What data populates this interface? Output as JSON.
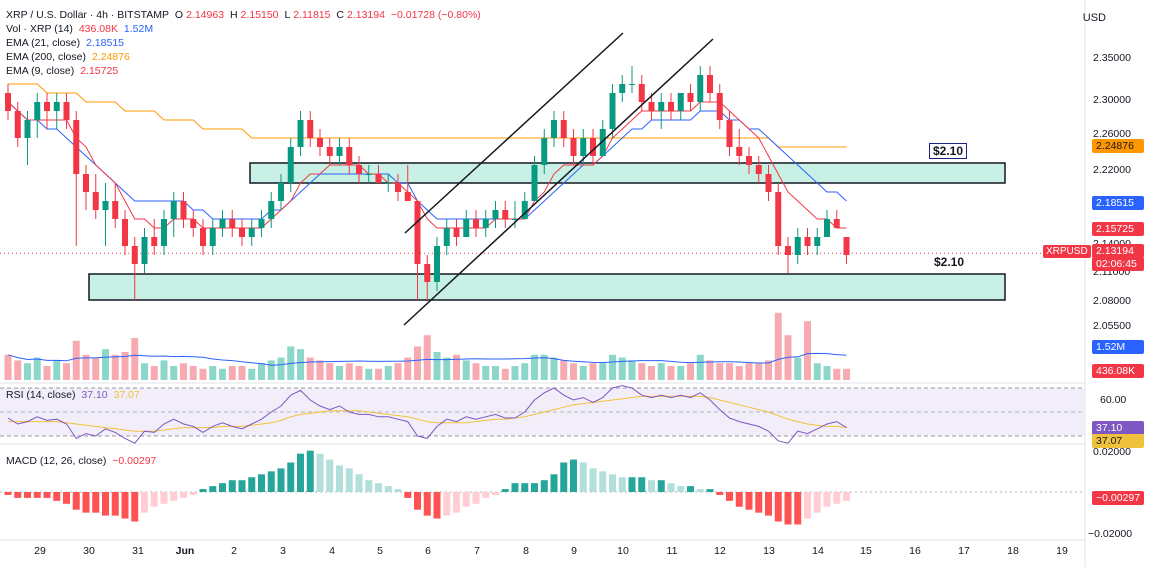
{
  "header": {
    "symbol_line": "XRP / U.S. Dollar · 4h · BITSTAMP",
    "ohlc": {
      "o_label": "O",
      "o": "2.14963",
      "h_label": "H",
      "h": "2.15150",
      "l_label": "L",
      "l": "2.11815",
      "c_label": "C",
      "c": "2.13194",
      "change": "−0.01728 (−0.80%)"
    },
    "indicators": [
      {
        "label": "Vol · XRP (14)",
        "values": [
          "436.08K",
          "1.52M"
        ],
        "colors": [
          "#f23645",
          "#2962ff"
        ]
      },
      {
        "label": "EMA (21, close)",
        "values": [
          "2.18515"
        ],
        "colors": [
          "#2962ff"
        ]
      },
      {
        "label": "EMA (200, close)",
        "values": [
          "2.24876"
        ],
        "colors": [
          "#ff9800"
        ]
      },
      {
        "label": "EMA (9, close)",
        "values": [
          "2.15725"
        ],
        "colors": [
          "#f23645"
        ]
      }
    ],
    "currency": "USD"
  },
  "price_axis": [
    "2.35000",
    "2.30000",
    "2.26000",
    "2.22000",
    "2.14000",
    "2.11000",
    "2.08000",
    "2.05500"
  ],
  "price_tags": {
    "ema200": "2.24876",
    "ema21": "2.18515",
    "ema9": "2.15725",
    "last": "2.13194",
    "countdown": "02:06:45",
    "symbol": "XRPUSD",
    "vol_ma": "1.52M",
    "vol": "436.08K"
  },
  "annotations": {
    "upper_level": "$2.10",
    "lower_level": "$2.10"
  },
  "rsi": {
    "label": "RSI (14, close)",
    "value": "37.10",
    "ma": "37.07",
    "axis": [
      "60.00"
    ]
  },
  "macd": {
    "label": "MACD (12, 26, close)",
    "value": "−0.00297",
    "axis": [
      "0.02000",
      "−0.02000"
    ]
  },
  "x_axis": [
    "29",
    "30",
    "31",
    "Jun",
    "2",
    "3",
    "4",
    "5",
    "6",
    "7",
    "8",
    "9",
    "10",
    "11",
    "12",
    "13",
    "14",
    "15",
    "16",
    "17",
    "18",
    "19"
  ],
  "colors": {
    "up": "#089981",
    "down": "#f23645",
    "ema21": "#2962ff",
    "ema200": "#ff9800",
    "ema9": "#f23645",
    "zone": "#c8f0e4",
    "rsi": "#7e57c2",
    "rsi_ma": "#f0c23b"
  },
  "chart_data": {
    "type": "candlestick",
    "timeframe": "4h",
    "ohlc": [
      [
        2.31,
        2.32,
        2.28,
        2.29
      ],
      [
        2.29,
        2.3,
        2.25,
        2.26
      ],
      [
        2.26,
        2.29,
        2.23,
        2.28
      ],
      [
        2.28,
        2.31,
        2.26,
        2.3
      ],
      [
        2.3,
        2.31,
        2.27,
        2.29
      ],
      [
        2.29,
        2.31,
        2.27,
        2.3
      ],
      [
        2.3,
        2.31,
        2.27,
        2.28
      ],
      [
        2.28,
        2.29,
        2.14,
        2.22
      ],
      [
        2.22,
        2.23,
        2.18,
        2.2
      ],
      [
        2.2,
        2.22,
        2.17,
        2.18
      ],
      [
        2.18,
        2.21,
        2.14,
        2.19
      ],
      [
        2.19,
        2.21,
        2.16,
        2.17
      ],
      [
        2.17,
        2.18,
        2.13,
        2.14
      ],
      [
        2.14,
        2.15,
        2.08,
        2.12
      ],
      [
        2.12,
        2.16,
        2.11,
        2.15
      ],
      [
        2.15,
        2.17,
        2.13,
        2.14
      ],
      [
        2.14,
        2.18,
        2.13,
        2.17
      ],
      [
        2.17,
        2.2,
        2.15,
        2.19
      ],
      [
        2.19,
        2.2,
        2.16,
        2.17
      ],
      [
        2.17,
        2.18,
        2.15,
        2.16
      ],
      [
        2.16,
        2.17,
        2.13,
        2.14
      ],
      [
        2.14,
        2.17,
        2.13,
        2.16
      ],
      [
        2.16,
        2.18,
        2.15,
        2.17
      ],
      [
        2.17,
        2.18,
        2.15,
        2.16
      ],
      [
        2.16,
        2.17,
        2.14,
        2.15
      ],
      [
        2.15,
        2.17,
        2.14,
        2.16
      ],
      [
        2.16,
        2.18,
        2.15,
        2.17
      ],
      [
        2.17,
        2.2,
        2.16,
        2.19
      ],
      [
        2.19,
        2.22,
        2.18,
        2.21
      ],
      [
        2.21,
        2.26,
        2.2,
        2.25
      ],
      [
        2.25,
        2.29,
        2.24,
        2.28
      ],
      [
        2.28,
        2.29,
        2.25,
        2.26
      ],
      [
        2.26,
        2.27,
        2.24,
        2.25
      ],
      [
        2.25,
        2.26,
        2.23,
        2.24
      ],
      [
        2.24,
        2.26,
        2.23,
        2.25
      ],
      [
        2.25,
        2.26,
        2.22,
        2.23
      ],
      [
        2.23,
        2.24,
        2.21,
        2.22
      ],
      [
        2.22,
        2.23,
        2.21,
        2.22
      ],
      [
        2.22,
        2.23,
        2.21,
        2.21
      ],
      [
        2.21,
        2.22,
        2.2,
        2.21
      ],
      [
        2.21,
        2.22,
        2.19,
        2.2
      ],
      [
        2.2,
        2.23,
        2.19,
        2.19
      ],
      [
        2.19,
        2.19,
        2.08,
        2.12
      ],
      [
        2.12,
        2.13,
        2.08,
        2.1
      ],
      [
        2.1,
        2.15,
        2.09,
        2.14
      ],
      [
        2.14,
        2.17,
        2.13,
        2.16
      ],
      [
        2.16,
        2.17,
        2.14,
        2.15
      ],
      [
        2.15,
        2.18,
        2.15,
        2.17
      ],
      [
        2.17,
        2.18,
        2.15,
        2.16
      ],
      [
        2.16,
        2.18,
        2.15,
        2.17
      ],
      [
        2.17,
        2.19,
        2.16,
        2.18
      ],
      [
        2.18,
        2.19,
        2.16,
        2.17
      ],
      [
        2.17,
        2.19,
        2.16,
        2.17
      ],
      [
        2.17,
        2.2,
        2.17,
        2.19
      ],
      [
        2.19,
        2.24,
        2.19,
        2.23
      ],
      [
        2.23,
        2.27,
        2.22,
        2.26
      ],
      [
        2.26,
        2.29,
        2.25,
        2.28
      ],
      [
        2.28,
        2.29,
        2.25,
        2.26
      ],
      [
        2.26,
        2.27,
        2.23,
        2.24
      ],
      [
        2.24,
        2.27,
        2.23,
        2.26
      ],
      [
        2.26,
        2.27,
        2.23,
        2.24
      ],
      [
        2.24,
        2.28,
        2.24,
        2.27
      ],
      [
        2.27,
        2.32,
        2.26,
        2.31
      ],
      [
        2.31,
        2.33,
        2.3,
        2.32
      ],
      [
        2.32,
        2.34,
        2.31,
        2.32
      ],
      [
        2.32,
        2.33,
        2.29,
        2.3
      ],
      [
        2.3,
        2.31,
        2.28,
        2.29
      ],
      [
        2.29,
        2.31,
        2.27,
        2.3
      ],
      [
        2.3,
        2.31,
        2.28,
        2.29
      ],
      [
        2.29,
        2.31,
        2.28,
        2.31
      ],
      [
        2.31,
        2.32,
        2.29,
        2.3
      ],
      [
        2.3,
        2.34,
        2.29,
        2.33
      ],
      [
        2.33,
        2.34,
        2.3,
        2.31
      ],
      [
        2.31,
        2.32,
        2.27,
        2.28
      ],
      [
        2.28,
        2.29,
        2.24,
        2.25
      ],
      [
        2.25,
        2.27,
        2.23,
        2.24
      ],
      [
        2.24,
        2.25,
        2.22,
        2.23
      ],
      [
        2.23,
        2.24,
        2.21,
        2.22
      ],
      [
        2.22,
        2.23,
        2.19,
        2.2
      ],
      [
        2.2,
        2.21,
        2.13,
        2.14
      ],
      [
        2.14,
        2.15,
        2.11,
        2.13
      ],
      [
        2.13,
        2.16,
        2.12,
        2.15
      ],
      [
        2.15,
        2.16,
        2.13,
        2.14
      ],
      [
        2.14,
        2.16,
        2.13,
        2.15
      ],
      [
        2.15,
        2.18,
        2.15,
        2.17
      ],
      [
        2.17,
        2.18,
        2.16,
        2.16
      ],
      [
        2.15,
        2.15,
        2.12,
        2.13
      ]
    ],
    "ema21": [
      2.3,
      2.29,
      2.28,
      2.28,
      2.27,
      2.27,
      2.26,
      2.25,
      2.24,
      2.23,
      2.22,
      2.21,
      2.2,
      2.19,
      2.19,
      2.19,
      2.19,
      2.19,
      2.19,
      2.18,
      2.18,
      2.17,
      2.17,
      2.17,
      2.17,
      2.17,
      2.17,
      2.18,
      2.18,
      2.19,
      2.2,
      2.21,
      2.22,
      2.22,
      2.22,
      2.22,
      2.22,
      2.22,
      2.22,
      2.22,
      2.21,
      2.21,
      2.19,
      2.18,
      2.17,
      2.17,
      2.17,
      2.17,
      2.17,
      2.17,
      2.17,
      2.17,
      2.17,
      2.17,
      2.18,
      2.19,
      2.2,
      2.21,
      2.22,
      2.23,
      2.23,
      2.24,
      2.25,
      2.26,
      2.27,
      2.27,
      2.28,
      2.28,
      2.28,
      2.28,
      2.28,
      2.29,
      2.29,
      2.29,
      2.28,
      2.28,
      2.27,
      2.27,
      2.26,
      2.25,
      2.24,
      2.23,
      2.22,
      2.21,
      2.2,
      2.2,
      2.19
    ],
    "ema200": [
      2.32,
      2.32,
      2.32,
      2.32,
      2.31,
      2.31,
      2.31,
      2.31,
      2.3,
      2.3,
      2.3,
      2.3,
      2.29,
      2.29,
      2.29,
      2.29,
      2.28,
      2.28,
      2.28,
      2.28,
      2.27,
      2.27,
      2.27,
      2.27,
      2.27,
      2.26,
      2.26,
      2.26,
      2.26,
      2.26,
      2.26,
      2.26,
      2.26,
      2.26,
      2.26,
      2.26,
      2.26,
      2.26,
      2.26,
      2.26,
      2.26,
      2.26,
      2.26,
      2.26,
      2.26,
      2.26,
      2.26,
      2.26,
      2.26,
      2.26,
      2.26,
      2.26,
      2.26,
      2.26,
      2.26,
      2.26,
      2.26,
      2.26,
      2.26,
      2.26,
      2.26,
      2.26,
      2.26,
      2.26,
      2.26,
      2.26,
      2.26,
      2.26,
      2.26,
      2.26,
      2.26,
      2.26,
      2.26,
      2.26,
      2.26,
      2.26,
      2.26,
      2.26,
      2.26,
      2.25,
      2.25,
      2.25,
      2.25,
      2.25,
      2.25,
      2.25,
      2.25
    ],
    "ema9": [
      2.3,
      2.29,
      2.28,
      2.28,
      2.28,
      2.28,
      2.28,
      2.26,
      2.25,
      2.23,
      2.22,
      2.21,
      2.19,
      2.17,
      2.17,
      2.16,
      2.16,
      2.17,
      2.17,
      2.17,
      2.16,
      2.16,
      2.16,
      2.16,
      2.16,
      2.16,
      2.16,
      2.17,
      2.18,
      2.19,
      2.21,
      2.22,
      2.22,
      2.23,
      2.23,
      2.23,
      2.23,
      2.22,
      2.22,
      2.21,
      2.21,
      2.2,
      2.19,
      2.17,
      2.16,
      2.16,
      2.16,
      2.16,
      2.16,
      2.16,
      2.17,
      2.17,
      2.17,
      2.17,
      2.19,
      2.2,
      2.22,
      2.23,
      2.23,
      2.23,
      2.23,
      2.24,
      2.26,
      2.27,
      2.28,
      2.29,
      2.29,
      2.29,
      2.29,
      2.29,
      2.29,
      2.3,
      2.3,
      2.3,
      2.29,
      2.28,
      2.27,
      2.26,
      2.24,
      2.22,
      2.2,
      2.19,
      2.18,
      2.17,
      2.17,
      2.16,
      2.16
    ],
    "volume": [
      0.9,
      0.7,
      0.6,
      0.8,
      0.5,
      0.7,
      0.6,
      1.4,
      0.9,
      0.8,
      1.1,
      0.9,
      1.0,
      1.5,
      0.6,
      0.5,
      0.7,
      0.5,
      0.6,
      0.5,
      0.4,
      0.5,
      0.4,
      0.5,
      0.5,
      0.4,
      0.6,
      0.7,
      0.8,
      1.2,
      1.1,
      0.8,
      0.7,
      0.6,
      0.5,
      0.6,
      0.5,
      0.4,
      0.4,
      0.5,
      0.6,
      0.8,
      1.2,
      1.6,
      1.0,
      0.8,
      0.9,
      0.7,
      0.6,
      0.5,
      0.5,
      0.4,
      0.5,
      0.6,
      0.9,
      0.9,
      0.8,
      0.7,
      0.6,
      0.5,
      0.6,
      0.6,
      0.9,
      0.8,
      0.7,
      0.6,
      0.5,
      0.6,
      0.5,
      0.5,
      0.6,
      0.9,
      0.7,
      0.6,
      0.6,
      0.5,
      0.6,
      0.6,
      0.7,
      2.4,
      1.6,
      0.8,
      2.1,
      0.6,
      0.5,
      0.4,
      0.4
    ],
    "rsi": [
      45,
      40,
      42,
      46,
      43,
      44,
      40,
      28,
      32,
      30,
      36,
      33,
      28,
      24,
      34,
      33,
      40,
      44,
      40,
      38,
      33,
      38,
      41,
      38,
      36,
      40,
      44,
      50,
      55,
      64,
      68,
      60,
      55,
      52,
      55,
      50,
      48,
      48,
      46,
      46,
      44,
      42,
      30,
      28,
      38,
      44,
      42,
      46,
      44,
      46,
      48,
      45,
      45,
      50,
      60,
      66,
      70,
      64,
      60,
      62,
      58,
      62,
      70,
      72,
      70,
      64,
      62,
      64,
      62,
      64,
      62,
      66,
      60,
      52,
      45,
      42,
      40,
      38,
      34,
      26,
      24,
      34,
      32,
      36,
      40,
      42,
      37
    ],
    "rsi_ma": [
      42,
      42,
      42,
      42,
      42,
      42,
      41,
      40,
      39,
      38,
      37,
      36,
      35,
      34,
      34,
      34,
      35,
      36,
      37,
      37,
      37,
      37,
      38,
      38,
      38,
      39,
      40,
      41,
      43,
      46,
      48,
      49,
      50,
      51,
      51,
      51,
      51,
      50,
      49,
      48,
      47,
      46,
      44,
      42,
      41,
      41,
      41,
      41,
      42,
      43,
      44,
      44,
      45,
      46,
      48,
      50,
      52,
      54,
      56,
      57,
      58,
      59,
      60,
      61,
      62,
      63,
      63,
      63,
      63,
      63,
      63,
      63,
      62,
      60,
      58,
      56,
      54,
      52,
      50,
      47,
      44,
      42,
      40,
      39,
      38,
      38,
      37
    ],
    "macd_hist": [
      -0.001,
      -0.002,
      -0.002,
      -0.002,
      -0.002,
      -0.003,
      -0.004,
      -0.006,
      -0.007,
      -0.007,
      -0.008,
      -0.008,
      -0.009,
      -0.01,
      -0.007,
      -0.005,
      -0.004,
      -0.003,
      -0.002,
      -0.001,
      0.001,
      0.002,
      0.003,
      0.004,
      0.004,
      0.005,
      0.006,
      0.007,
      0.008,
      0.01,
      0.013,
      0.014,
      0.013,
      0.011,
      0.009,
      0.008,
      0.006,
      0.004,
      0.003,
      0.002,
      0.001,
      -0.002,
      -0.006,
      -0.008,
      -0.009,
      -0.008,
      -0.007,
      -0.005,
      -0.004,
      -0.002,
      -0.001,
      0.001,
      0.003,
      0.003,
      0.003,
      0.004,
      0.006,
      0.01,
      0.011,
      0.01,
      0.008,
      0.007,
      0.006,
      0.005,
      0.005,
      0.005,
      0.004,
      0.004,
      0.003,
      0.002,
      0.002,
      0.001,
      0.001,
      -0.001,
      -0.003,
      -0.005,
      -0.006,
      -0.007,
      -0.008,
      -0.01,
      -0.011,
      -0.011,
      -0.009,
      -0.007,
      -0.005,
      -0.004,
      -0.003
    ]
  }
}
